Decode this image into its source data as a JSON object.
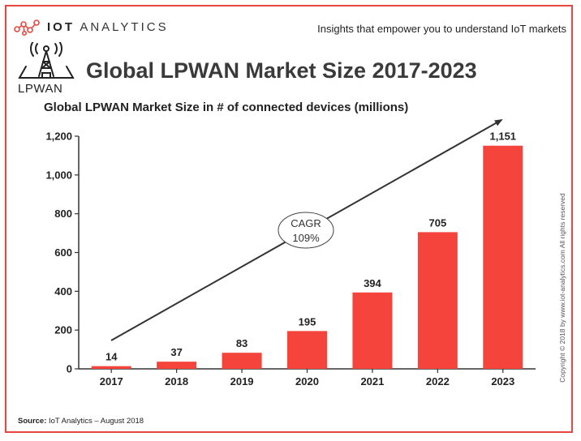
{
  "header": {
    "brand_bold": "IOT",
    "brand_light": " ANALYTICS",
    "tagline": "Insights that empower you to understand IoT markets",
    "logo_word": "LPWAN"
  },
  "footer": {
    "source_label": "Source:",
    "source_text": " IoT Analytics – August 2018",
    "copyright": "Copyright © 2018 by www.iot-analytics.com All rights reserved"
  },
  "colors": {
    "bar": "#f4443c",
    "frame": "#e8473f",
    "text": "#222222"
  },
  "chart_data": {
    "type": "bar",
    "title": "Global LPWAN Market Size 2017-2023",
    "subtitle": "Global LPWAN Market Size in # of connected devices (millions)",
    "categories": [
      "2017",
      "2018",
      "2019",
      "2020",
      "2021",
      "2022",
      "2023"
    ],
    "values": [
      14,
      37,
      83,
      195,
      394,
      705,
      1151
    ],
    "value_labels": [
      "14",
      "37",
      "83",
      "195",
      "394",
      "705",
      "1,151"
    ],
    "yticks": [
      0,
      200,
      400,
      600,
      800,
      1000,
      1200
    ],
    "ytick_labels": [
      "0",
      "200",
      "400",
      "600",
      "800",
      "1,000",
      "1,200"
    ],
    "ylim": [
      0,
      1200
    ],
    "grid": false,
    "annotation": {
      "line1": "CAGR",
      "line2": "109%"
    }
  }
}
